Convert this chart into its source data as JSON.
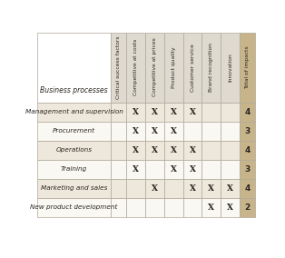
{
  "row_labels": [
    "Management and supervision",
    "Procurement",
    "Operations",
    "Training",
    "Marketing and sales",
    "New product development"
  ],
  "col_headers": [
    "Critical success factors",
    "Competitive at costs",
    "Competitive at prices",
    "Product quality",
    "Customer service",
    "Brand recognition",
    "Innovation",
    "Total of impacts"
  ],
  "header_row_label": "Business processes",
  "data": [
    [
      "X",
      "X",
      "X",
      "X",
      "",
      "",
      "4"
    ],
    [
      "X",
      "X",
      "X",
      "",
      "",
      "",
      "3"
    ],
    [
      "X",
      "X",
      "X",
      "X",
      "",
      "",
      "4"
    ],
    [
      "X",
      "",
      "X",
      "X",
      "",
      "",
      "3"
    ],
    [
      "",
      "X",
      "",
      "X",
      "X",
      "X",
      "4"
    ],
    [
      "",
      "",
      "",
      "",
      "X",
      "X",
      "2"
    ]
  ],
  "row_colors": [
    "#ede8db",
    "#faf8f3",
    "#ede8db",
    "#faf8f3",
    "#ede8db",
    "#faf8f3"
  ],
  "header_bg": "#dedad0",
  "total_col_bg": "#c8b48a",
  "border_color": "#b0a898",
  "text_color": "#2a2520"
}
